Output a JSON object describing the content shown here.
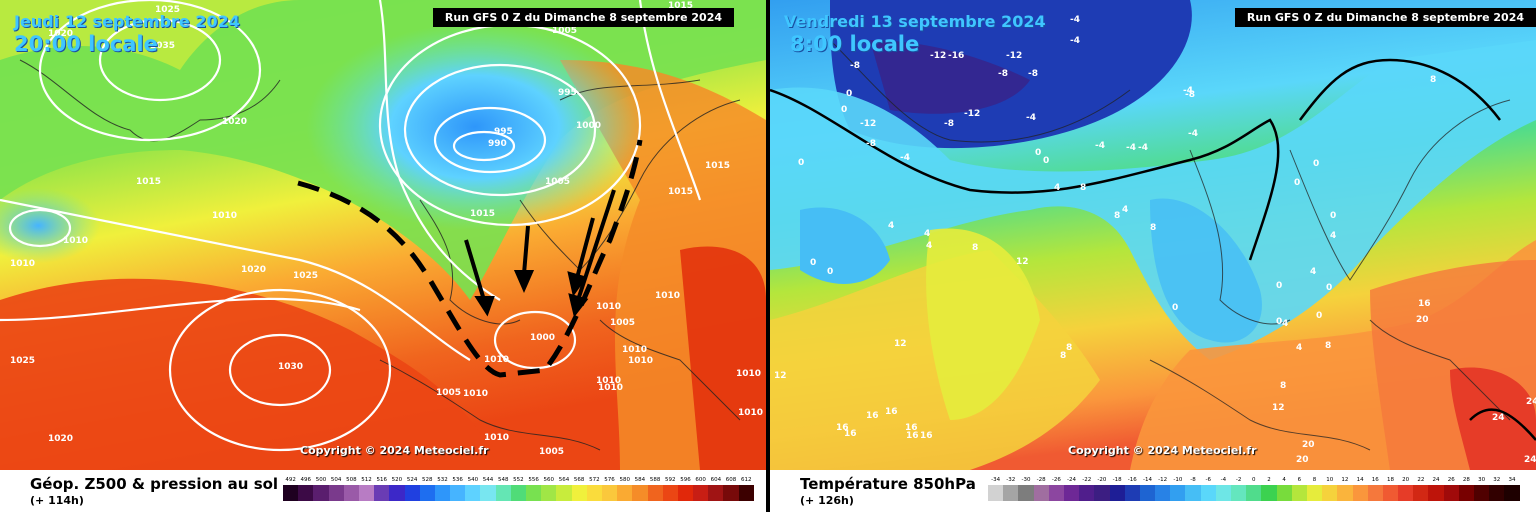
{
  "left_panel": {
    "date": "Jeudi 12 septembre 2024",
    "local_time": "20:00 locale",
    "run": "Run GFS 0 Z du Dimanche 8 septembre 2024",
    "copyright": "Copyright © 2024 Meteociel.fr",
    "title": "Géop. Z500 & pression au sol",
    "lead": "(+ 114h)",
    "isobar_labels": [
      "1020",
      "1025",
      "1035",
      "1005",
      "1015",
      "1020",
      "995",
      "995",
      "990",
      "1000",
      "1015",
      "1005",
      "1015",
      "1015",
      "1010",
      "1015",
      "1010",
      "1010",
      "1020",
      "1025",
      "1010",
      "1010",
      "1030",
      "1005",
      "1000",
      "1010",
      "1025",
      "1010",
      "1010",
      "1010",
      "1010",
      "1010",
      "1005",
      "1010",
      "1010",
      "1020",
      "1010",
      "1005"
    ],
    "scale_labels": [
      "492",
      "496",
      "500",
      "504",
      "508",
      "512",
      "516",
      "520",
      "524",
      "528",
      "532",
      "536",
      "540",
      "544",
      "548",
      "552",
      "556",
      "560",
      "564",
      "568",
      "572",
      "576",
      "580",
      "584",
      "588",
      "592",
      "596",
      "600",
      "604",
      "608",
      "612"
    ],
    "scale_colors": [
      "#1e0020",
      "#3c0a46",
      "#5a1e6e",
      "#7a3a8c",
      "#9a5aa8",
      "#b87cc4",
      "#6a3cb4",
      "#3c28c8",
      "#2040e0",
      "#1e6ef0",
      "#2e96fa",
      "#46b4ff",
      "#5ed2ff",
      "#78e6f0",
      "#64e6b4",
      "#50dc78",
      "#78e150",
      "#a0e646",
      "#c8ec3c",
      "#f0f03c",
      "#fadc3c",
      "#fac83c",
      "#faaa32",
      "#f58c28",
      "#f0641e",
      "#eb4614",
      "#e1280a",
      "#c81e14",
      "#a01414",
      "#780a0a",
      "#3c0000"
    ]
  },
  "right_panel": {
    "date": "Vendredi 13 septembre 2024",
    "local_time": "8:00 locale",
    "run": "Run GFS 0 Z du Dimanche 8 septembre 2024",
    "copyright": "Copyright © 2024 Meteociel.fr",
    "title": "Température 850hPa",
    "lead": "(+ 126h)",
    "temp_labels": [
      "-4",
      "-4",
      "-12",
      "-16",
      "-12",
      "-8",
      "-8",
      "-8",
      "-12",
      "-8",
      "-12",
      "-4",
      "-8",
      "-4",
      "-4",
      "-8",
      "-4",
      "-4",
      "-4",
      "-4",
      "0",
      "0",
      "0",
      "0",
      "0",
      "0",
      "0",
      "0",
      "0",
      "0",
      "0",
      "0",
      "0",
      "0",
      "0",
      "4",
      "4",
      "4",
      "4",
      "4",
      "4",
      "4",
      "4",
      "4",
      "8",
      "8",
      "8",
      "8",
      "8",
      "8",
      "8",
      "8",
      "8",
      "12",
      "12",
      "12",
      "12",
      "16",
      "16",
      "16",
      "16",
      "16",
      "16",
      "16",
      "16",
      "20",
      "20",
      "20",
      "24",
      "24",
      "24"
    ],
    "scale_labels": [
      "-34",
      "-32",
      "-30",
      "-28",
      "-26",
      "-24",
      "-22",
      "-20",
      "-18",
      "-16",
      "-14",
      "-12",
      "-10",
      "-8",
      "-6",
      "-4",
      "-2",
      "0",
      "2",
      "4",
      "6",
      "8",
      "10",
      "12",
      "14",
      "16",
      "18",
      "20",
      "22",
      "24",
      "26",
      "28",
      "30",
      "32",
      "34"
    ],
    "scale_colors": [
      "#d2d2d2",
      "#a5a5a5",
      "#7d7d7d",
      "#a06ea0",
      "#8c46a0",
      "#6e2896",
      "#501e8c",
      "#3c1e82",
      "#1e1e96",
      "#1e3cb4",
      "#1e64d2",
      "#2882e6",
      "#329ff0",
      "#46bef5",
      "#5ad7fa",
      "#6ee6e6",
      "#64e6be",
      "#50dc8c",
      "#3cd250",
      "#78dc3c",
      "#b4e63c",
      "#e6ec3c",
      "#f5d23c",
      "#fab43c",
      "#fa963c",
      "#f5783c",
      "#f05a32",
      "#e63c28",
      "#d22814",
      "#be140a",
      "#a00a0a",
      "#780000",
      "#500000",
      "#320000",
      "#1e0000"
    ]
  }
}
